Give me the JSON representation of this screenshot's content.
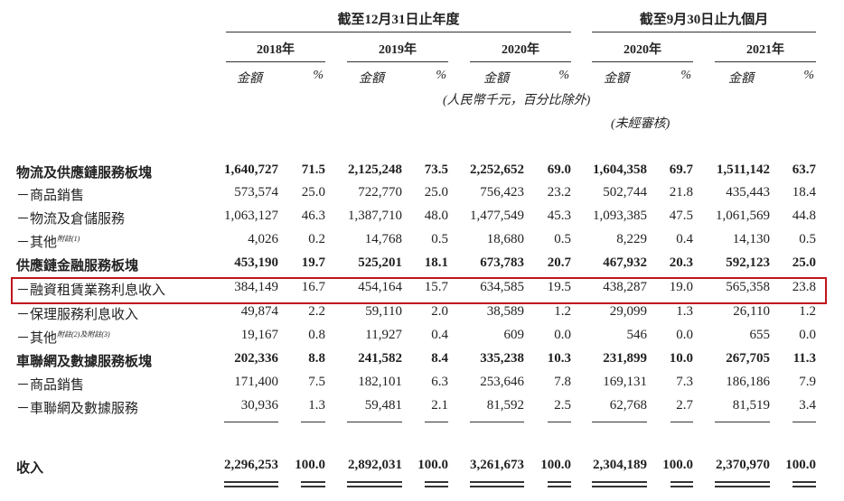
{
  "header": {
    "group1": "截至12月31日止年度",
    "group2": "截至9月30日止九個月",
    "years": [
      "2018年",
      "2019年",
      "2020年",
      "2020年",
      "2021年"
    ],
    "amount": "金額",
    "pct": "%",
    "unit_note": "(人民幣千元，百分比除外)",
    "unaudited": "(未經審核)"
  },
  "rows": [
    {
      "label": "物流及供應鏈服務板塊",
      "bold": true,
      "values": [
        "1,640,727",
        "71.5",
        "2,125,248",
        "73.5",
        "2,252,652",
        "69.0",
        "1,604,358",
        "69.7",
        "1,511,142",
        "63.7"
      ]
    },
    {
      "label": "－商品銷售",
      "values": [
        "573,574",
        "25.0",
        "722,770",
        "25.0",
        "756,423",
        "23.2",
        "502,744",
        "21.8",
        "435,443",
        "18.4"
      ]
    },
    {
      "label": "－物流及倉儲服務",
      "values": [
        "1,063,127",
        "46.3",
        "1,387,710",
        "48.0",
        "1,477,549",
        "45.3",
        "1,093,385",
        "47.5",
        "1,061,569",
        "44.8"
      ]
    },
    {
      "label": "－其他",
      "note": "附註(1)",
      "values": [
        "4,026",
        "0.2",
        "14,768",
        "0.5",
        "18,680",
        "0.5",
        "8,229",
        "0.4",
        "14,130",
        "0.5"
      ]
    },
    {
      "label": "供應鏈金融服務板塊",
      "bold": true,
      "values": [
        "453,190",
        "19.7",
        "525,201",
        "18.1",
        "673,783",
        "20.7",
        "467,932",
        "20.3",
        "592,123",
        "25.0"
      ]
    },
    {
      "label": "－融資租賃業務利息收入",
      "highlight": true,
      "values": [
        "384,149",
        "16.7",
        "454,164",
        "15.7",
        "634,585",
        "19.5",
        "438,287",
        "19.0",
        "565,358",
        "23.8"
      ]
    },
    {
      "label": "－保理服務利息收入",
      "values": [
        "49,874",
        "2.2",
        "59,110",
        "2.0",
        "38,589",
        "1.2",
        "29,099",
        "1.3",
        "26,110",
        "1.2"
      ]
    },
    {
      "label": "－其他",
      "note": "附註(2)及附註(3)",
      "values": [
        "19,167",
        "0.8",
        "11,927",
        "0.4",
        "609",
        "0.0",
        "546",
        "0.0",
        "655",
        "0.0"
      ]
    },
    {
      "label": "車聯網及數據服務板塊",
      "bold": true,
      "values": [
        "202,336",
        "8.8",
        "241,582",
        "8.4",
        "335,238",
        "10.3",
        "231,899",
        "10.0",
        "267,705",
        "11.3"
      ]
    },
    {
      "label": "－商品銷售",
      "values": [
        "171,400",
        "7.5",
        "182,101",
        "6.3",
        "253,646",
        "7.8",
        "169,131",
        "7.3",
        "186,186",
        "7.9"
      ]
    },
    {
      "label": "－車聯網及數據服務",
      "values": [
        "30,936",
        "1.3",
        "59,481",
        "2.1",
        "81,592",
        "2.5",
        "62,768",
        "2.7",
        "81,519",
        "3.4"
      ]
    },
    {
      "label": "收入",
      "bold": true,
      "total": true,
      "values": [
        "2,296,253",
        "100.0",
        "2,892,031",
        "100.0",
        "3,261,673",
        "100.0",
        "2,304,189",
        "100.0",
        "2,370,970",
        "100.0"
      ]
    }
  ]
}
